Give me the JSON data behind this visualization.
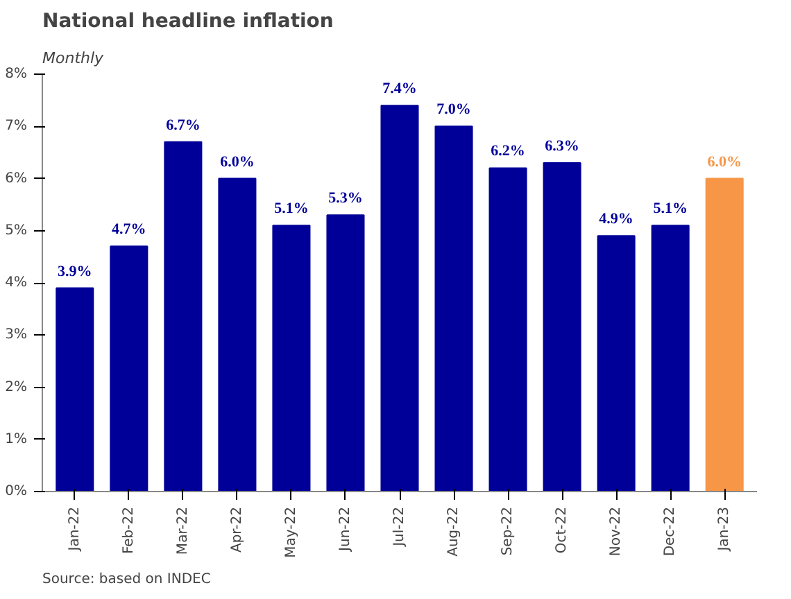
{
  "chart_data": {
    "type": "bar",
    "title": "National headline inflation",
    "subtitle": "Monthly",
    "categories": [
      "Jan-22",
      "Feb-22",
      "Mar-22",
      "Apr-22",
      "May-22",
      "Jun-22",
      "Jul-22",
      "Aug-22",
      "Sep-22",
      "Oct-22",
      "Nov-22",
      "Dec-22",
      "Jan-23"
    ],
    "values": [
      3.9,
      4.7,
      6.7,
      6.0,
      5.1,
      5.3,
      7.4,
      7.0,
      6.2,
      6.3,
      4.9,
      5.1,
      6.0
    ],
    "value_labels": [
      "3.9%",
      "4.7%",
      "6.7%",
      "6.0%",
      "5.1%",
      "5.3%",
      "7.4%",
      "7.0%",
      "6.2%",
      "6.3%",
      "4.9%",
      "5.1%",
      "6.0%"
    ],
    "colors": [
      "#000099",
      "#000099",
      "#000099",
      "#000099",
      "#000099",
      "#000099",
      "#000099",
      "#000099",
      "#000099",
      "#000099",
      "#000099",
      "#000099",
      "#f79646"
    ],
    "ylim": [
      0,
      8
    ],
    "yticks": [
      {
        "value": 0,
        "label": "0%"
      },
      {
        "value": 1,
        "label": "1%"
      },
      {
        "value": 2,
        "label": "2%"
      },
      {
        "value": 3,
        "label": "3%"
      },
      {
        "value": 4,
        "label": "4%"
      },
      {
        "value": 5,
        "label": "5%"
      },
      {
        "value": 6,
        "label": "6%"
      },
      {
        "value": 7,
        "label": "7%"
      },
      {
        "value": 8,
        "label": "8%"
      }
    ],
    "grid": false,
    "annotations": [
      "Source: based on INDEC"
    ]
  }
}
